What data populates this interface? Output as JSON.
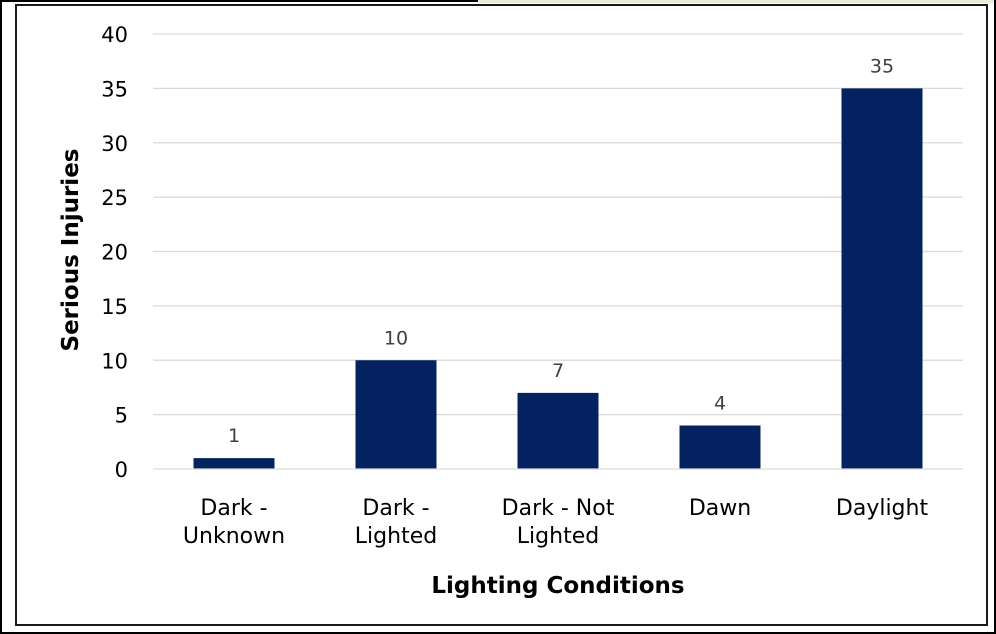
{
  "chart_data": {
    "type": "bar",
    "title": "",
    "xlabel": "Lighting Conditions",
    "ylabel": "Serious Injuries",
    "categories": [
      [
        "Dark -",
        "Unknown"
      ],
      [
        "Dark -",
        "Lighted"
      ],
      [
        "Dark - Not",
        "Lighted"
      ],
      [
        "Dawn"
      ],
      [
        "Daylight"
      ]
    ],
    "values": [
      1,
      10,
      7,
      4,
      35
    ],
    "ylim": [
      0,
      40
    ],
    "yticks": [
      0,
      5,
      10,
      15,
      20,
      25,
      30,
      35,
      40
    ],
    "grid": true,
    "legend": "none",
    "bar_color": "#042160",
    "grid_color": "#d9d9d9"
  }
}
